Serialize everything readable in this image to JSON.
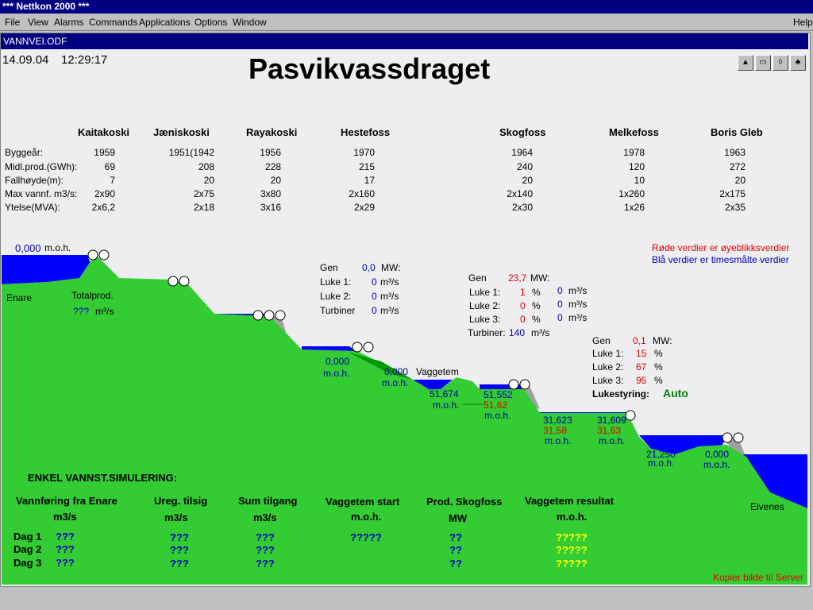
{
  "app": {
    "title": "*** Nettkon 2000 ***"
  },
  "menu": [
    "File",
    "View",
    "Alarms",
    "Commands",
    "Applications",
    "Options",
    "Window"
  ],
  "menu_help": "Help",
  "document": {
    "title": "VANNVEI.ODF",
    "date": "14.09.04",
    "time": "12:29:17",
    "heading": "Pasvikvassdraget"
  },
  "stations": [
    "Kaitakoski",
    "Jæniskoski",
    "Rayakoski",
    "Hestefoss",
    "Skogfoss",
    "Melkefoss",
    "Boris Gleb"
  ],
  "row_labels": [
    "Byggeår:",
    "Midl.prod.(GWh):",
    "Fallhøyde(m):",
    "Max vannf. m3/s:",
    "Ytelse(MVA):"
  ],
  "table": [
    [
      "1959",
      "1951(1942",
      "1956",
      "1970",
      "1964",
      "1978",
      "1963"
    ],
    [
      "69",
      "208",
      "228",
      "215",
      "240",
      "120",
      "272"
    ],
    [
      "7",
      "20",
      "20",
      "17",
      "20",
      "10",
      "20"
    ],
    [
      "2x90",
      "2x75",
      "3x80",
      "2x160",
      "2x140",
      "1x260",
      "2x175"
    ],
    [
      "2x6,2",
      "2x18",
      "3x16",
      "2x29",
      "2x30",
      "1x26",
      "2x35"
    ]
  ],
  "legend": {
    "red": "Røde verdier er øyeblikksverdier",
    "blue": "Blå verdier er timesmålte verdier"
  },
  "profile": {
    "enare_level": "0,000",
    "moh": "m.o.h.",
    "enare": "Enare",
    "totalprod": "Totalprod.",
    "totalprod_value": "???",
    "unit_m3s": "m³/s",
    "l1": "0,000",
    "l2": "0,000",
    "vaggetem": "Vaggetem",
    "l3": "51,674",
    "l4": "51,552",
    "l4_red": "51,62",
    "l5": "31,623",
    "l5_red": "31,58",
    "l6": "31,609",
    "l6_red": "31,63",
    "l7": "21,250",
    "l8": "0,000",
    "elvenes": "Elvenes"
  },
  "panel1": {
    "gen_label": "Gen",
    "gen_value": "0,0",
    "gen_unit": "MW:",
    "luke1_label": "Luke 1:",
    "luke1": "0",
    "luke2_label": "Luke 2:",
    "luke2": "0",
    "turb_label": "Turbiner",
    "turb": "0",
    "unit": "m³/s"
  },
  "panel2": {
    "gen_label": "Gen",
    "gen_value": "23,7",
    "gen_unit": "MW:",
    "luke1_label": "Luke 1:",
    "luke1_pct": "1",
    "luke1_flow": "0",
    "luke2_label": "Luke 2:",
    "luke2_pct": "0",
    "luke2_flow": "0",
    "luke3_label": "Luke 3:",
    "luke3_pct": "0",
    "luke3_flow": "0",
    "pct": "%",
    "unit": "m³/s",
    "turb_label": "Turbiner:",
    "turb": "140"
  },
  "panel3": {
    "gen_label": "Gen",
    "gen_value": "0,1",
    "gen_unit": "MW:",
    "luke1_label": "Luke 1:",
    "luke1": "15",
    "luke2_label": "Luke 2:",
    "luke2": "67",
    "luke3_label": "Luke 3:",
    "luke3": "95",
    "pct": "%",
    "lukestyring_label": "Lukestyring:",
    "lukestyring_value": "Auto"
  },
  "simulation": {
    "title": "ENKEL VANNST.SIMULERING:",
    "columns": [
      {
        "label": "Vannføring fra Enare",
        "unit": "m3/s"
      },
      {
        "label": "Ureg. tilsig",
        "unit": "m3/s"
      },
      {
        "label": "Sum tilgang",
        "unit": "m3/s"
      },
      {
        "label": "Vaggetem start",
        "unit": "m.o.h."
      },
      {
        "label": "Prod. Skogfoss",
        "unit": "MW"
      },
      {
        "label": "Vaggetem resultat",
        "unit": "m.o.h."
      }
    ],
    "rows": [
      {
        "label": "Dag 1",
        "values": [
          "???",
          "???",
          "???",
          "?????",
          "??",
          "?????"
        ]
      },
      {
        "label": "Dag 2",
        "values": [
          "???",
          "???",
          "???",
          "",
          "??",
          "?????"
        ]
      },
      {
        "label": "Dag 3",
        "values": [
          "???",
          "???",
          "???",
          "",
          "??",
          "?????"
        ]
      }
    ]
  },
  "copy_link": "Kopier bilde til Server",
  "colors": {
    "terrain": "#33cc33",
    "water": "#0000ff",
    "titlebar": "#000080",
    "rock": "#a0a0a0"
  }
}
